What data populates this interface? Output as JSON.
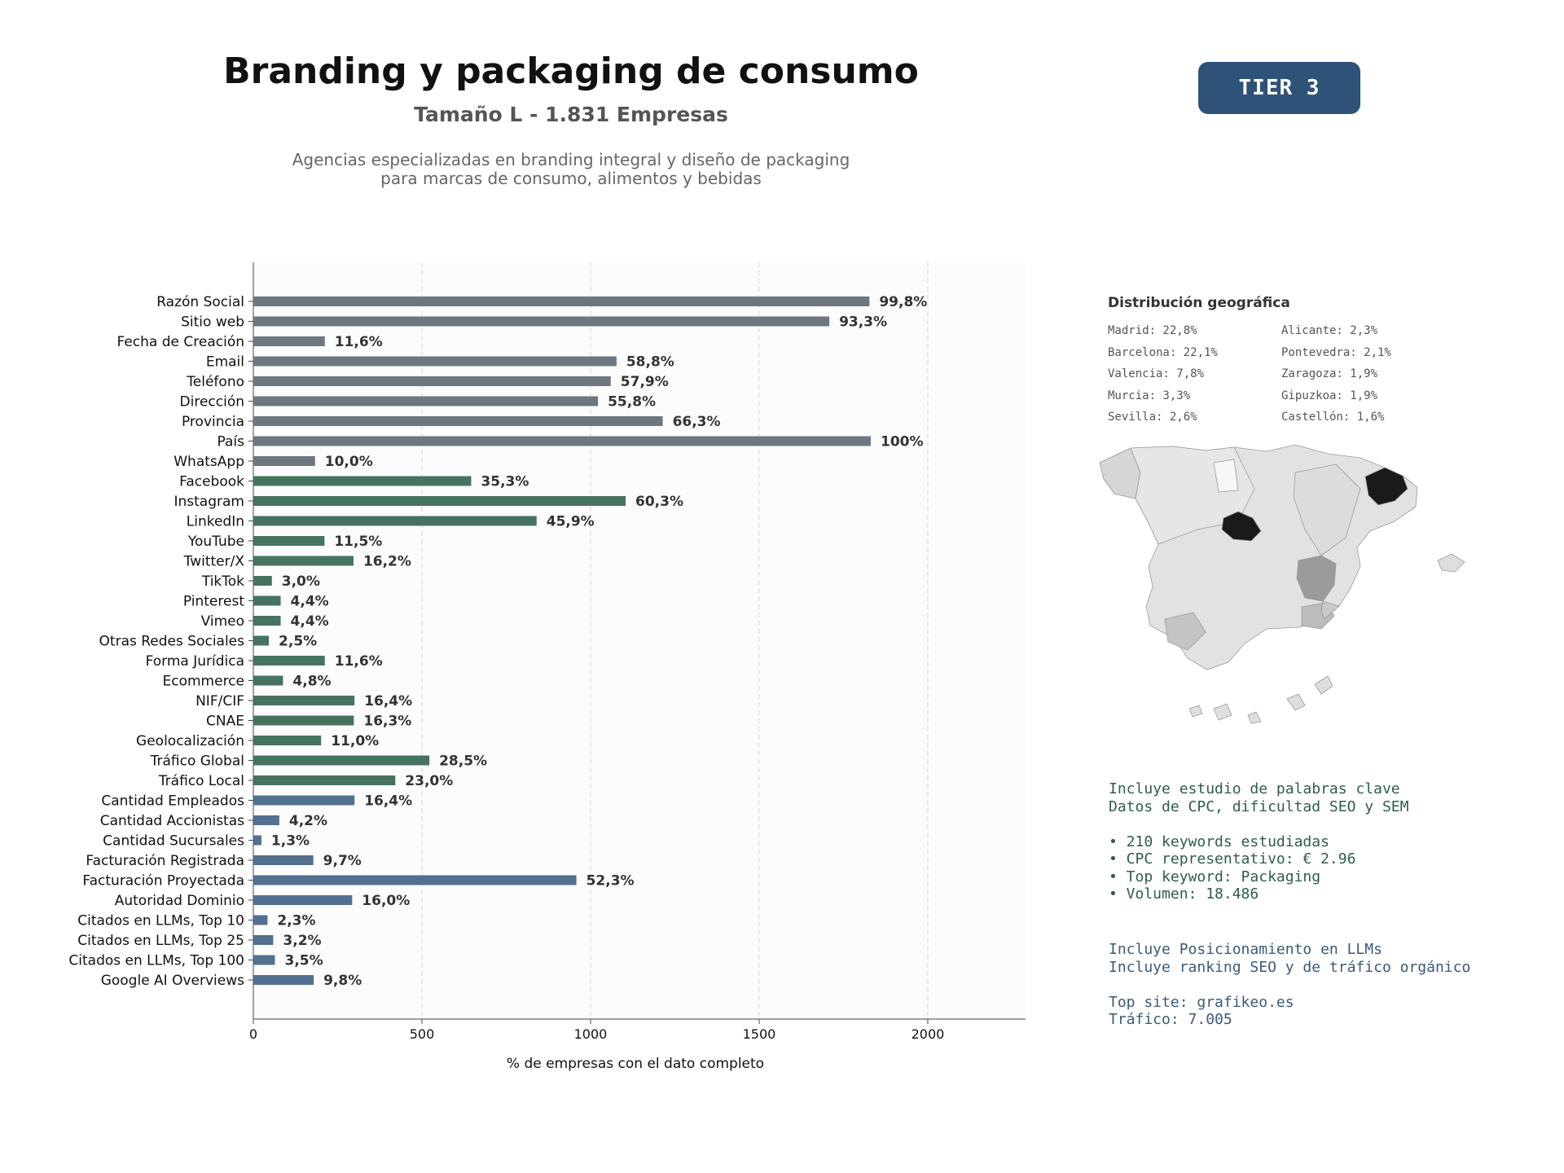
{
  "header": {
    "title": "Branding y packaging de consumo",
    "subtitle": "Tamaño L - 1.831 Empresas",
    "description_lines": [
      "Agencias especializadas en branding integral y diseño de packaging",
      "para marcas de consumo, alimentos y bebidas"
    ],
    "tier_badge": "TIER 3"
  },
  "colors": {
    "gray_bar": "#6e7680",
    "green_bar": "#467360",
    "blue_bar": "#52708f",
    "tier_bg": "#2f5278"
  },
  "chart_data": {
    "type": "bar",
    "orientation": "horizontal",
    "xlabel": "% de empresas con el dato completo",
    "xlim": [
      0,
      2290
    ],
    "xticks": [
      0,
      500,
      1000,
      1500,
      2000
    ],
    "grid": "vertical dashed",
    "categories": [
      "Razón Social",
      "Sitio web",
      "Fecha de Creación",
      "Email",
      "Teléfono",
      "Dirección",
      "Provincia",
      "País",
      "WhatsApp",
      "Facebook",
      "Instagram",
      "LinkedIn",
      "YouTube",
      "Twitter/X",
      "TikTok",
      "Pinterest",
      "Vimeo",
      "Otras Redes Sociales",
      "Forma Jurídica",
      "Ecommerce",
      "NIF/CIF",
      "CNAE",
      "Geolocalización",
      "Tráfico Global",
      "Tráfico Local",
      "Cantidad Empleados",
      "Cantidad Accionistas",
      "Cantidad Sucursales",
      "Facturación Registrada",
      "Facturación Proyectada",
      "Autoridad Dominio",
      "Citados en LLMs, Top 10",
      "Citados en LLMs, Top 25",
      "Citados en LLMs, Top 100",
      "Google AI Overviews"
    ],
    "values": [
      1827,
      1708,
      212,
      1077,
      1060,
      1022,
      1214,
      1831,
      183,
      646,
      1104,
      840,
      211,
      297,
      55,
      81,
      81,
      46,
      212,
      88,
      300,
      298,
      201,
      522,
      421,
      300,
      77,
      24,
      178,
      958,
      293,
      42,
      59,
      64,
      179
    ],
    "labels": [
      "99,8%",
      "93,3%",
      "11,6%",
      "58,8%",
      "57,9%",
      "55,8%",
      "66,3%",
      "100%",
      "10,0%",
      "35,3%",
      "60,3%",
      "45,9%",
      "11,5%",
      "16,2%",
      "3,0%",
      "4,4%",
      "4,4%",
      "2,5%",
      "11,6%",
      "4,8%",
      "16,4%",
      "16,3%",
      "11,0%",
      "28,5%",
      "23,0%",
      "16,4%",
      "4,2%",
      "1,3%",
      "9,7%",
      "52,3%",
      "16,0%",
      "2,3%",
      "3,2%",
      "3,5%",
      "9,8%"
    ],
    "groups": [
      "gray",
      "gray",
      "gray",
      "gray",
      "gray",
      "gray",
      "gray",
      "gray",
      "gray",
      "green",
      "green",
      "green",
      "green",
      "green",
      "green",
      "green",
      "green",
      "green",
      "green",
      "green",
      "green",
      "green",
      "green",
      "green",
      "green",
      "blue",
      "blue",
      "blue",
      "blue",
      "blue",
      "blue",
      "blue",
      "blue",
      "blue",
      "blue"
    ]
  },
  "geo": {
    "title": "Distribución geográfica",
    "items": [
      "Madrid: 22,8%",
      "Alicante: 2,3%",
      "Barcelona: 22,1%",
      "Pontevedra: 2,1%",
      "Valencia: 7,8%",
      "Zaragoza: 1,9%",
      "Murcia: 3,3%",
      "Gipuzkoa: 1,9%",
      "Sevilla: 2,6%",
      "Castellón: 1,6%"
    ]
  },
  "keywords": {
    "lines": [
      "Incluye estudio de palabras clave",
      "Datos de CPC, dificultad SEO y SEM",
      "",
      "• 210 keywords estudiadas",
      "• CPC representativo: € 2.96",
      "• Top keyword: Packaging",
      "• Volumen: 18.486"
    ]
  },
  "llm": {
    "lines": [
      "Incluye Posicionamiento en LLMs",
      "Incluye ranking SEO y de tráfico orgánico",
      "",
      "Top site: grafikeo.es",
      "Tráfico: 7.005"
    ]
  }
}
